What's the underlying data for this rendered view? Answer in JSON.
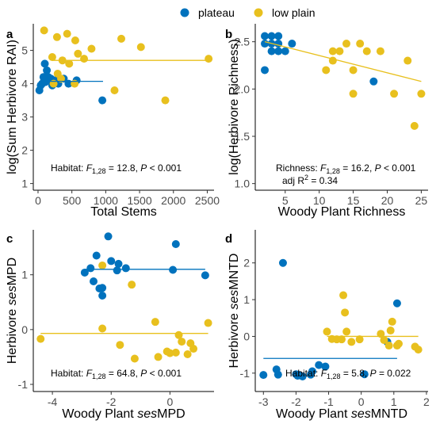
{
  "legend": {
    "items": [
      {
        "label": "plateau",
        "color": "#0072BD"
      },
      {
        "label": "low plain",
        "color": "#E8C01E"
      }
    ]
  },
  "chart_data": [
    {
      "type": "scatter",
      "panel": "a",
      "xlabel": "Total Stems",
      "ylabel": "log(Sum Herbivore RAI)",
      "xlim": [
        -70,
        2600
      ],
      "ylim": [
        0.8,
        5.8
      ],
      "xticks": [
        0,
        500,
        1000,
        1500,
        2000,
        2500
      ],
      "yticks": [
        1,
        2,
        3,
        4,
        5
      ],
      "annotation": {
        "pre": "Habitat: ",
        "F": "F",
        "sub": "1,28",
        "post": " = 12.8, ",
        "P": "P",
        "tail": " < 0.001"
      },
      "series": [
        {
          "name": "plateau",
          "color": "#0072BD",
          "points": [
            [
              20,
              3.8
            ],
            [
              40,
              3.95
            ],
            [
              60,
              4.0
            ],
            [
              80,
              4.2
            ],
            [
              90,
              4.1
            ],
            [
              100,
              4.6
            ],
            [
              110,
              4.05
            ],
            [
              130,
              4.4
            ],
            [
              150,
              4.2
            ],
            [
              170,
              4.1
            ],
            [
              190,
              4.15
            ],
            [
              210,
              3.95
            ],
            [
              250,
              4.1
            ],
            [
              300,
              4.0
            ],
            [
              380,
              4.15
            ],
            [
              450,
              4.0
            ],
            [
              570,
              4.1
            ],
            [
              950,
              3.5
            ]
          ],
          "fit": {
            "x": [
              20,
              960
            ],
            "y": [
              4.07,
              4.07
            ]
          }
        },
        {
          "name": "low plain",
          "color": "#E8C01E",
          "points": [
            [
              90,
              5.6
            ],
            [
              210,
              4.8
            ],
            [
              230,
              4.0
            ],
            [
              280,
              5.4
            ],
            [
              290,
              4.3
            ],
            [
              340,
              4.15
            ],
            [
              360,
              4.7
            ],
            [
              430,
              5.5
            ],
            [
              460,
              4.6
            ],
            [
              540,
              4.0
            ],
            [
              550,
              5.3
            ],
            [
              590,
              4.9
            ],
            [
              680,
              4.75
            ],
            [
              790,
              5.05
            ],
            [
              1130,
              3.8
            ],
            [
              1230,
              5.35
            ],
            [
              1520,
              5.1
            ],
            [
              1880,
              3.5
            ],
            [
              2520,
              4.75
            ]
          ],
          "fit": {
            "x": [
              210,
              2520
            ],
            "y": [
              4.7,
              4.7
            ]
          }
        }
      ]
    },
    {
      "type": "scatter",
      "panel": "b",
      "xlabel": "Woody Plant Richness",
      "ylabel": "log(Herbivore Richness)",
      "xlim": [
        0.6,
        26.0
      ],
      "ylim": [
        0.93,
        2.69
      ],
      "xticks": [
        5,
        10,
        15,
        20,
        25
      ],
      "yticks": [
        1.0,
        1.5,
        2.0,
        2.5
      ],
      "annotation": {
        "pre": "Richness: ",
        "F": "F",
        "sub": "1,28",
        "post": " = 16.2, ",
        "P": "P",
        "tail": " < 0.001"
      },
      "annotation2": {
        "pre": "adj R",
        "sup": "2",
        "post": " = 0.34"
      },
      "series": [
        {
          "name": "plateau",
          "color": "#0072BD",
          "points": [
            [
              2,
              2.2
            ],
            [
              2,
              2.56
            ],
            [
              2,
              2.48
            ],
            [
              3,
              2.48
            ],
            [
              3,
              2.56
            ],
            [
              3,
              2.4
            ],
            [
              4,
              2.4
            ],
            [
              4,
              2.48
            ],
            [
              4,
              2.56
            ],
            [
              5,
              2.4
            ],
            [
              6,
              2.48
            ],
            [
              18,
              2.08
            ]
          ],
          "fit": null
        },
        {
          "name": "low plain",
          "color": "#E8C01E",
          "points": [
            [
              11,
              2.2
            ],
            [
              12,
              2.3
            ],
            [
              12,
              2.4
            ],
            [
              13,
              2.4
            ],
            [
              14,
              2.48
            ],
            [
              15,
              2.2
            ],
            [
              15,
              1.95
            ],
            [
              16,
              2.48
            ],
            [
              17,
              2.4
            ],
            [
              19,
              2.4
            ],
            [
              21,
              1.95
            ],
            [
              23,
              2.3
            ],
            [
              24,
              1.61
            ],
            [
              25,
              1.95
            ]
          ],
          "fit": null
        }
      ],
      "combined_fit": {
        "color": "#E8C01E",
        "x": [
          2,
          25
        ],
        "y": [
          2.5,
          2.08
        ]
      }
    },
    {
      "type": "scatter",
      "panel": "c",
      "xlabel": "Woody Plant sesMPD",
      "xlabel_ital": "ses",
      "xlabel_pre": "Woody Plant ",
      "xlabel_post": "MPD",
      "ylabel": "Herbivore sesMPD",
      "ylabel_pre": "Herbivore ",
      "ylabel_ital": "ses",
      "ylabel_post": "MPD",
      "xlim": [
        -4.65,
        1.5
      ],
      "ylim": [
        -1.13,
        1.82
      ],
      "xticks": [
        -4,
        -2,
        0
      ],
      "yticks": [
        -1,
        0,
        1
      ],
      "annotation": {
        "pre": "Habitat: ",
        "F": "F",
        "sub": "1,28",
        "post": " = 64.8, ",
        "P": "P",
        "tail": " < 0.001"
      },
      "series": [
        {
          "name": "plateau",
          "color": "#0072BD",
          "points": [
            [
              -2.9,
              1.04
            ],
            [
              -2.7,
              1.12
            ],
            [
              -2.6,
              0.88
            ],
            [
              -2.5,
              1.35
            ],
            [
              -2.4,
              0.75
            ],
            [
              -2.3,
              0.62
            ],
            [
              -2.3,
              0.76
            ],
            [
              -2.1,
              1.7
            ],
            [
              -2.0,
              1.25
            ],
            [
              -1.8,
              1.08
            ],
            [
              -1.75,
              1.2
            ],
            [
              -1.5,
              1.12
            ],
            [
              0.1,
              1.09
            ],
            [
              0.2,
              1.56
            ],
            [
              1.2,
              0.99
            ]
          ],
          "fit": {
            "x": [
              -2.9,
              1.2
            ],
            "y": [
              1.1,
              1.1
            ]
          }
        },
        {
          "name": "low plain",
          "color": "#E8C01E",
          "points": [
            [
              -4.4,
              -0.17
            ],
            [
              -2.3,
              1.17
            ],
            [
              -2.3,
              0.02
            ],
            [
              -1.7,
              -0.28
            ],
            [
              -1.3,
              0.82
            ],
            [
              -1.2,
              -0.53
            ],
            [
              -0.5,
              0.14
            ],
            [
              -0.4,
              -0.5
            ],
            [
              -0.1,
              -0.4
            ],
            [
              0.0,
              -0.43
            ],
            [
              0.2,
              -0.42
            ],
            [
              0.3,
              -0.1
            ],
            [
              0.4,
              -0.22
            ],
            [
              0.6,
              -0.45
            ],
            [
              0.7,
              -0.25
            ],
            [
              0.8,
              -0.35
            ],
            [
              1.3,
              0.12
            ]
          ],
          "fit": {
            "x": [
              -4.4,
              1.3
            ],
            "y": [
              -0.07,
              -0.07
            ]
          }
        }
      ]
    },
    {
      "type": "scatter",
      "panel": "d",
      "xlabel": "Woody Plant sesMNTD",
      "xlabel_pre": "Woody Plant ",
      "xlabel_ital": "ses",
      "xlabel_post": "MNTD",
      "ylabel": "Herbivore sesMNTD",
      "ylabel_pre": "Herbivore ",
      "ylabel_ital": "ses",
      "ylabel_post": "MNTD",
      "xlim": [
        -3.25,
        2.05
      ],
      "ylim": [
        -1.5,
        2.9
      ],
      "xticks": [
        -3,
        -2,
        -1,
        0,
        1,
        2
      ],
      "yticks": [
        -1,
        0,
        1,
        2
      ],
      "annotation": {
        "pre": "Habitat: ",
        "F": "F",
        "sub": "1,28",
        "post": " = 5.8, ",
        "P": "P",
        "tail": " = 0.022"
      },
      "series": [
        {
          "name": "plateau",
          "color": "#0072BD",
          "points": [
            [
              -3.0,
              -1.05
            ],
            [
              -2.6,
              -0.9
            ],
            [
              -2.55,
              -1.04
            ],
            [
              -2.4,
              2.0
            ],
            [
              -2.0,
              -1.03
            ],
            [
              -1.95,
              -1.07
            ],
            [
              -1.9,
              -1.05
            ],
            [
              -1.8,
              -1.09
            ],
            [
              -1.55,
              -1.04
            ],
            [
              -1.5,
              -0.95
            ],
            [
              -1.3,
              -0.78
            ],
            [
              -1.1,
              -0.82
            ],
            [
              0.1,
              -1.03
            ],
            [
              0.8,
              -0.15
            ],
            [
              1.1,
              0.9
            ]
          ],
          "fit": {
            "x": [
              -3.0,
              1.1
            ],
            "y": [
              -0.6,
              -0.6
            ]
          }
        },
        {
          "name": "low plain",
          "color": "#E8C01E",
          "points": [
            [
              -1.05,
              0.13
            ],
            [
              -0.9,
              -0.07
            ],
            [
              -0.75,
              -0.08
            ],
            [
              -0.6,
              -0.08
            ],
            [
              -0.55,
              1.12
            ],
            [
              -0.5,
              0.65
            ],
            [
              -0.45,
              0.13
            ],
            [
              -0.3,
              -0.15
            ],
            [
              -0.05,
              -0.08
            ],
            [
              0.6,
              0.07
            ],
            [
              0.7,
              -0.1
            ],
            [
              0.85,
              -0.25
            ],
            [
              0.9,
              0.16
            ],
            [
              0.95,
              0.4
            ],
            [
              1.1,
              -0.25
            ],
            [
              1.15,
              -0.2
            ],
            [
              1.65,
              -0.28
            ],
            [
              1.75,
              -0.36
            ]
          ],
          "fit": {
            "x": [
              -1.05,
              1.75
            ],
            "y": [
              0.0,
              0.0
            ]
          }
        }
      ]
    }
  ]
}
